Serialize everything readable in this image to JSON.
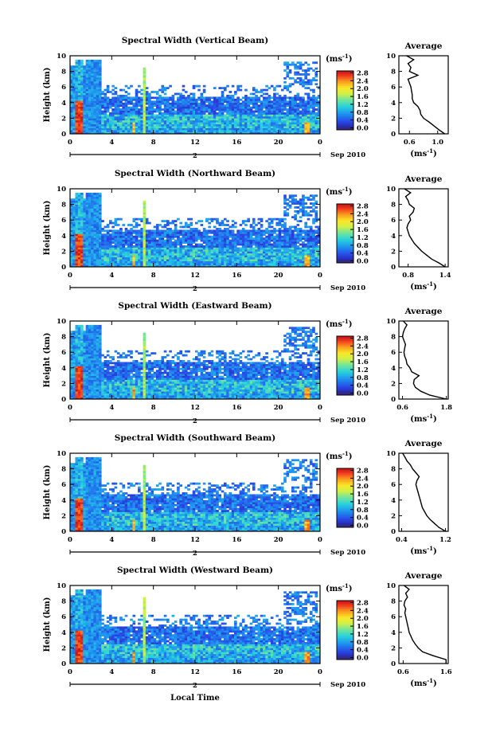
{
  "figure": {
    "xlabel": "Local Time",
    "date_label": "Sep 2010",
    "day_label": "2",
    "colorbar_unit": "(ms",
    "unit_exp": "-1",
    "colorbar_ticks": [
      "0.0",
      "0.4",
      "0.8",
      "1.2",
      "1.6",
      "2.0",
      "2.4",
      "2.8"
    ],
    "average_title": "Average",
    "average_xlabel": "(ms",
    "ylabel": "Height (km)"
  },
  "chart_data": [
    {
      "type": "heatmap",
      "title": "Spectral Width (Vertical Beam)",
      "xlabel": "Local Time",
      "ylabel": "Height (km)",
      "xlim": [
        0,
        24
      ],
      "ylim": [
        0,
        10
      ],
      "x_ticks": [
        "0",
        "4",
        "8",
        "12",
        "16",
        "20",
        "0"
      ],
      "y_ticks": [
        "0",
        "2",
        "4",
        "6",
        "8",
        "10"
      ],
      "clim": [
        0.0,
        2.8
      ],
      "colorbar_label": "(ms-1)",
      "seed": 11,
      "profile": {
        "type": "line",
        "title": "Average",
        "xlabel": "(ms-1)",
        "xlim": [
          0.45,
          1.15
        ],
        "x_ticks": [
          "0.6",
          "1.0"
        ],
        "height": [
          0,
          0.5,
          1,
          1.5,
          2,
          2.5,
          3,
          3.5,
          4,
          4.5,
          5,
          5.5,
          6,
          6.5,
          7,
          7.5,
          8,
          8.5,
          9,
          9.5,
          10
        ],
        "value": [
          1.1,
          1.02,
          0.95,
          0.88,
          0.8,
          0.76,
          0.75,
          0.72,
          0.66,
          0.64,
          0.64,
          0.63,
          0.62,
          0.6,
          0.58,
          0.72,
          0.6,
          0.62,
          0.58,
          0.66,
          0.56
        ]
      }
    },
    {
      "type": "heatmap",
      "title": "Spectral Width (Northward Beam)",
      "xlabel": "Local Time",
      "ylabel": "Height (km)",
      "xlim": [
        0,
        24
      ],
      "ylim": [
        0,
        10
      ],
      "x_ticks": [
        "0",
        "4",
        "8",
        "12",
        "16",
        "20",
        "0"
      ],
      "y_ticks": [
        "0",
        "2",
        "4",
        "6",
        "8",
        "10"
      ],
      "clim": [
        0.0,
        2.8
      ],
      "colorbar_label": "(ms-1)",
      "seed": 23,
      "profile": {
        "type": "line",
        "title": "Average",
        "xlabel": "(ms-1)",
        "xlim": [
          0.65,
          1.45
        ],
        "x_ticks": [
          "0.8",
          "1.4"
        ],
        "height": [
          0,
          0.5,
          1,
          1.5,
          2,
          2.5,
          3,
          3.5,
          4,
          4.5,
          5,
          5.5,
          6,
          6.5,
          7,
          7.5,
          8,
          8.5,
          9,
          9.5,
          10
        ],
        "value": [
          1.4,
          1.3,
          1.18,
          1.1,
          1.02,
          0.96,
          0.9,
          0.86,
          0.82,
          0.8,
          0.78,
          0.8,
          0.84,
          0.82,
          0.88,
          0.9,
          0.82,
          0.8,
          0.76,
          0.84,
          0.74
        ]
      }
    },
    {
      "type": "heatmap",
      "title": "Spectral Width (Eastward Beam)",
      "xlabel": "Local Time",
      "ylabel": "Height (km)",
      "xlim": [
        0,
        24
      ],
      "ylim": [
        0,
        10
      ],
      "x_ticks": [
        "0",
        "4",
        "8",
        "12",
        "16",
        "20",
        "0"
      ],
      "y_ticks": [
        "0",
        "2",
        "4",
        "6",
        "8",
        "10"
      ],
      "clim": [
        0.0,
        2.8
      ],
      "colorbar_label": "(ms-1)",
      "seed": 37,
      "profile": {
        "type": "line",
        "title": "Average",
        "xlabel": "(ms-1)",
        "xlim": [
          0.5,
          1.85
        ],
        "x_ticks": [
          "0.6",
          "1.8"
        ],
        "height": [
          0,
          0.5,
          1,
          1.5,
          2,
          2.5,
          3,
          3.5,
          4,
          4.5,
          5,
          5.5,
          6,
          6.5,
          7,
          7.5,
          8,
          8.5,
          9,
          9.5,
          10
        ],
        "value": [
          1.8,
          1.35,
          1.1,
          0.95,
          0.9,
          0.92,
          1.05,
          0.85,
          0.8,
          0.72,
          0.7,
          0.66,
          0.64,
          0.66,
          0.68,
          0.64,
          0.6,
          0.62,
          0.66,
          0.72,
          0.62
        ]
      }
    },
    {
      "type": "heatmap",
      "title": "Spectral Width (Southward Beam)",
      "xlabel": "Local Time",
      "ylabel": "Height (km)",
      "xlim": [
        0,
        24
      ],
      "ylim": [
        0,
        10
      ],
      "x_ticks": [
        "0",
        "4",
        "8",
        "12",
        "16",
        "20",
        "0"
      ],
      "y_ticks": [
        "0",
        "2",
        "4",
        "6",
        "8",
        "10"
      ],
      "clim": [
        0.0,
        2.8
      ],
      "colorbar_label": "(ms-1)",
      "seed": 53,
      "profile": {
        "type": "line",
        "title": "Average",
        "xlabel": "(ms-1)",
        "xlim": [
          0.35,
          1.25
        ],
        "x_ticks": [
          "0.4",
          "1.2"
        ],
        "height": [
          0,
          0.5,
          1,
          1.5,
          2,
          2.5,
          3,
          3.5,
          4,
          4.5,
          5,
          5.5,
          6,
          6.5,
          7,
          7.5,
          8,
          8.5,
          9,
          9.5,
          10
        ],
        "value": [
          1.2,
          1.08,
          1.0,
          0.92,
          0.86,
          0.82,
          0.78,
          0.76,
          0.74,
          0.72,
          0.7,
          0.68,
          0.66,
          0.68,
          0.72,
          0.66,
          0.6,
          0.56,
          0.5,
          0.46,
          0.42
        ]
      }
    },
    {
      "type": "heatmap",
      "title": "Spectral Width (Westward Beam)",
      "xlabel": "Local Time",
      "ylabel": "Height (km)",
      "xlim": [
        0,
        24
      ],
      "ylim": [
        0,
        10
      ],
      "x_ticks": [
        "0",
        "4",
        "8",
        "12",
        "16",
        "20",
        "0"
      ],
      "y_ticks": [
        "0",
        "2",
        "4",
        "6",
        "8",
        "10"
      ],
      "clim": [
        0.0,
        2.8
      ],
      "colorbar_label": "(ms-1)",
      "seed": 71,
      "profile": {
        "type": "line",
        "title": "Average",
        "xlabel": "(ms-1)",
        "xlim": [
          0.5,
          1.65
        ],
        "x_ticks": [
          "0.6",
          "1.6"
        ],
        "height": [
          0,
          0.5,
          1,
          1.5,
          2,
          2.5,
          3,
          3.5,
          4,
          4.5,
          5,
          5.5,
          6,
          6.5,
          7,
          7.5,
          8,
          8.5,
          9,
          9.5,
          10
        ],
        "value": [
          1.6,
          1.6,
          1.3,
          1.05,
          0.95,
          0.88,
          0.82,
          0.78,
          0.74,
          0.72,
          0.7,
          0.68,
          0.66,
          0.64,
          0.66,
          0.62,
          0.64,
          0.7,
          0.66,
          0.74,
          0.62
        ]
      }
    }
  ]
}
